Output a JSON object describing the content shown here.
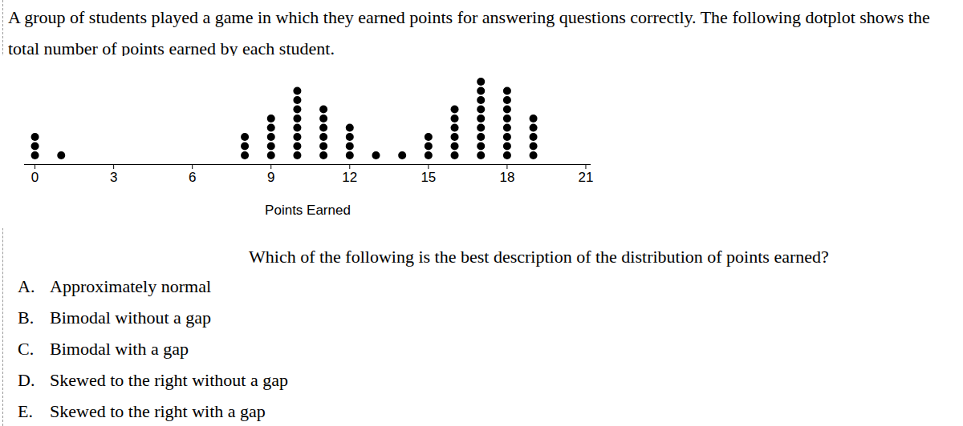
{
  "header": {
    "text": "A group of students played a game in which they earned points for answering questions correctly. The following dotplot shows the total number of points earned by each student."
  },
  "chart_data": {
    "type": "dotplot",
    "x_label": "Points Earned",
    "x": [
      0,
      1,
      8,
      9,
      10,
      11,
      12,
      13,
      14,
      15,
      16,
      17,
      18,
      19
    ],
    "values": [
      3,
      1,
      3,
      5,
      8,
      6,
      4,
      1,
      1,
      3,
      6,
      9,
      8,
      5
    ],
    "color": "#000000",
    "xlim": [
      -0.4,
      21.2
    ],
    "xticks": [
      0,
      3,
      6,
      9,
      12,
      15,
      18,
      21
    ],
    "tick_labels": "x"
  },
  "question": "Which of the following is the best description of the distribution of points earned?",
  "choices": [
    {
      "letter": "A.",
      "text": "Approximately normal"
    },
    {
      "letter": "B.",
      "text": "Bimodal without a gap"
    },
    {
      "letter": "C.",
      "text": "Bimodal with a gap"
    },
    {
      "letter": "D.",
      "text": "Skewed to the right without a gap"
    },
    {
      "letter": "E.",
      "text": "Skewed to the right with a gap"
    }
  ]
}
